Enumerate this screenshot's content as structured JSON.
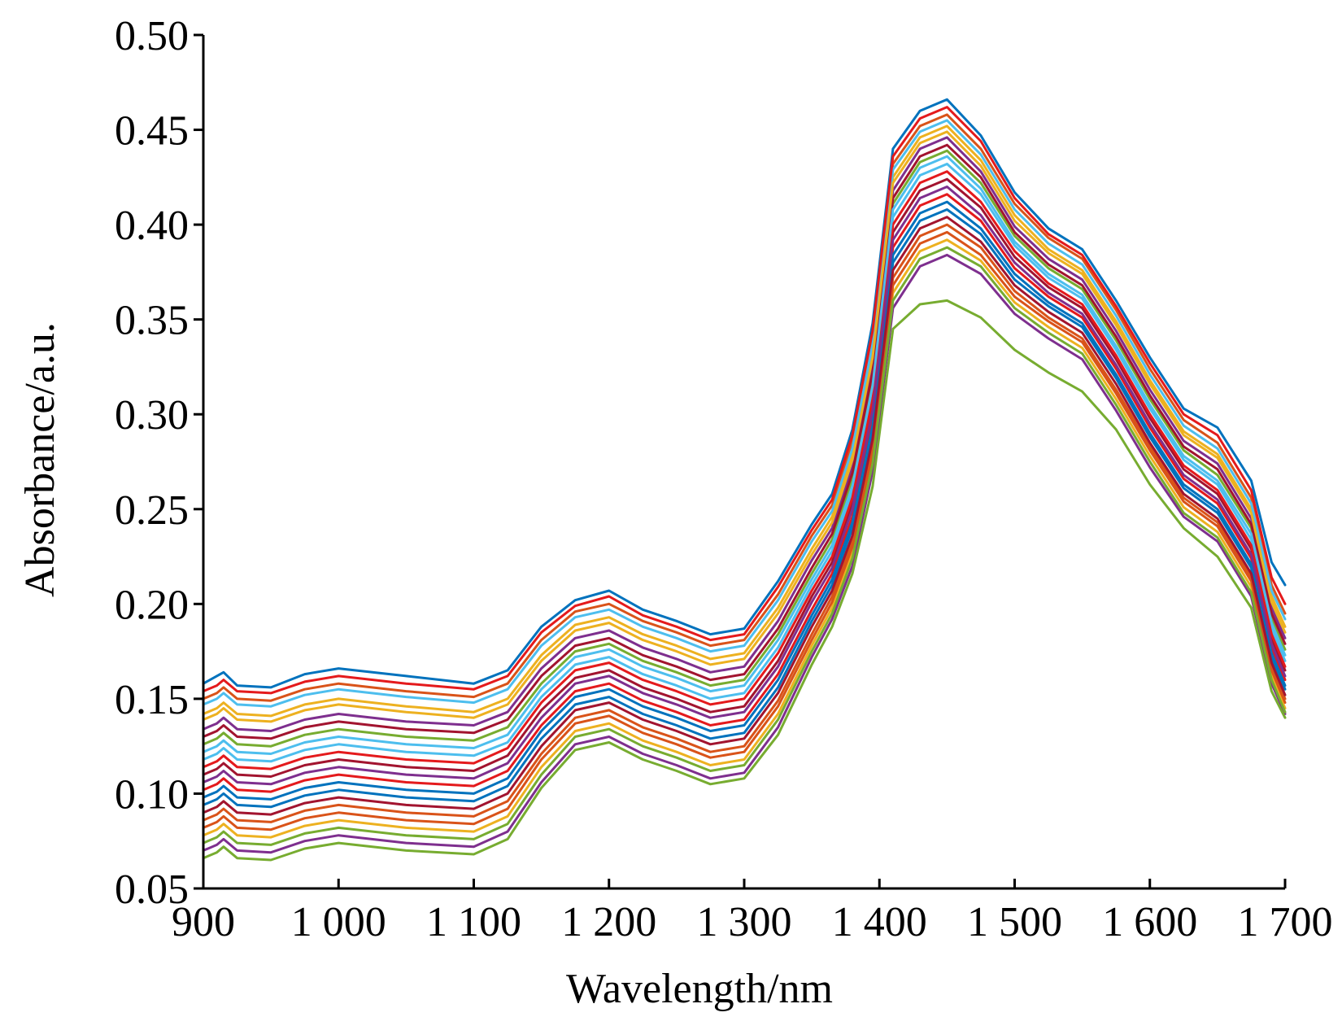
{
  "chart_data": {
    "type": "line",
    "xlabel": "Wavelength/nm",
    "ylabel": "Absorbance/a.u.",
    "xlim": [
      900,
      1700
    ],
    "ylim": [
      0.05,
      0.5
    ],
    "x_ticks": [
      900,
      1000,
      1100,
      1200,
      1300,
      1400,
      1500,
      1600,
      1700
    ],
    "x_tick_labels": [
      "900",
      "1 000",
      "1 100",
      "1 200",
      "1 300",
      "1 400",
      "1 500",
      "1 600",
      "1 700"
    ],
    "y_ticks": [
      0.05,
      0.1,
      0.15,
      0.2,
      0.25,
      0.3,
      0.35,
      0.4,
      0.45,
      0.5
    ],
    "y_tick_labels": [
      "0.05",
      "0.10",
      "0.15",
      "0.20",
      "0.25",
      "0.30",
      "0.35",
      "0.40",
      "0.45",
      "0.50"
    ],
    "grid": false,
    "legend": "none",
    "colors": [
      "#0072BD",
      "#D95319",
      "#EDB120",
      "#7E2F8E",
      "#77AC30",
      "#4DBEEE",
      "#A2142F",
      "#E41A1C"
    ],
    "x": [
      900,
      910,
      915,
      925,
      950,
      975,
      1000,
      1050,
      1100,
      1125,
      1150,
      1175,
      1200,
      1225,
      1250,
      1275,
      1300,
      1325,
      1350,
      1365,
      1380,
      1395,
      1410,
      1430,
      1450,
      1475,
      1500,
      1525,
      1550,
      1575,
      1600,
      1625,
      1650,
      1675,
      1690,
      1700
    ],
    "series": [
      {
        "values": [
          0.158,
          0.162,
          0.164,
          0.157,
          0.156,
          0.163,
          0.166,
          0.162,
          0.158,
          0.165,
          0.188,
          0.202,
          0.207,
          0.197,
          0.191,
          0.184,
          0.187,
          0.212,
          0.242,
          0.258,
          0.292,
          0.348,
          0.44,
          0.46,
          0.466,
          0.447,
          0.417,
          0.398,
          0.387,
          0.36,
          0.33,
          0.303,
          0.293,
          0.265,
          0.222,
          0.21
        ]
      },
      {
        "values": [
          0.15,
          0.153,
          0.156,
          0.15,
          0.149,
          0.155,
          0.158,
          0.154,
          0.151,
          0.158,
          0.181,
          0.196,
          0.2,
          0.191,
          0.185,
          0.178,
          0.181,
          0.205,
          0.236,
          0.252,
          0.285,
          0.34,
          0.432,
          0.452,
          0.458,
          0.44,
          0.411,
          0.393,
          0.382,
          0.355,
          0.324,
          0.297,
          0.285,
          0.256,
          0.21,
          0.195
        ]
      },
      {
        "values": [
          0.142,
          0.145,
          0.148,
          0.142,
          0.141,
          0.147,
          0.15,
          0.146,
          0.143,
          0.15,
          0.173,
          0.189,
          0.193,
          0.184,
          0.178,
          0.171,
          0.174,
          0.198,
          0.229,
          0.246,
          0.279,
          0.333,
          0.425,
          0.446,
          0.452,
          0.434,
          0.405,
          0.387,
          0.376,
          0.349,
          0.318,
          0.291,
          0.279,
          0.25,
          0.204,
          0.188
        ]
      },
      {
        "values": [
          0.134,
          0.137,
          0.14,
          0.134,
          0.133,
          0.139,
          0.142,
          0.138,
          0.136,
          0.143,
          0.166,
          0.182,
          0.186,
          0.177,
          0.171,
          0.164,
          0.167,
          0.191,
          0.223,
          0.24,
          0.272,
          0.326,
          0.418,
          0.44,
          0.446,
          0.428,
          0.399,
          0.382,
          0.371,
          0.344,
          0.313,
          0.286,
          0.274,
          0.245,
          0.198,
          0.182
        ]
      },
      {
        "values": [
          0.126,
          0.129,
          0.132,
          0.126,
          0.125,
          0.131,
          0.134,
          0.13,
          0.128,
          0.135,
          0.158,
          0.175,
          0.179,
          0.17,
          0.164,
          0.157,
          0.16,
          0.184,
          0.216,
          0.234,
          0.266,
          0.319,
          0.411,
          0.433,
          0.439,
          0.422,
          0.394,
          0.377,
          0.366,
          0.339,
          0.308,
          0.281,
          0.268,
          0.24,
          0.192,
          0.176
        ]
      },
      {
        "values": [
          0.118,
          0.121,
          0.124,
          0.118,
          0.117,
          0.123,
          0.126,
          0.122,
          0.12,
          0.127,
          0.151,
          0.168,
          0.172,
          0.163,
          0.157,
          0.15,
          0.153,
          0.177,
          0.21,
          0.228,
          0.259,
          0.312,
          0.404,
          0.426,
          0.432,
          0.416,
          0.389,
          0.372,
          0.361,
          0.334,
          0.303,
          0.276,
          0.263,
          0.234,
          0.187,
          0.17
        ]
      },
      {
        "values": [
          0.11,
          0.113,
          0.116,
          0.11,
          0.109,
          0.115,
          0.118,
          0.114,
          0.112,
          0.12,
          0.144,
          0.161,
          0.165,
          0.156,
          0.15,
          0.143,
          0.146,
          0.17,
          0.204,
          0.222,
          0.253,
          0.305,
          0.396,
          0.418,
          0.424,
          0.409,
          0.383,
          0.367,
          0.356,
          0.329,
          0.298,
          0.271,
          0.258,
          0.229,
          0.182,
          0.165
        ]
      },
      {
        "values": [
          0.102,
          0.105,
          0.108,
          0.102,
          0.101,
          0.107,
          0.11,
          0.106,
          0.104,
          0.112,
          0.136,
          0.154,
          0.158,
          0.149,
          0.143,
          0.136,
          0.139,
          0.163,
          0.197,
          0.216,
          0.246,
          0.298,
          0.388,
          0.41,
          0.416,
          0.402,
          0.377,
          0.362,
          0.351,
          0.324,
          0.293,
          0.266,
          0.253,
          0.224,
          0.177,
          0.16
        ]
      },
      {
        "values": [
          0.094,
          0.097,
          0.1,
          0.094,
          0.093,
          0.099,
          0.102,
          0.098,
          0.096,
          0.104,
          0.129,
          0.147,
          0.151,
          0.142,
          0.136,
          0.129,
          0.132,
          0.156,
          0.191,
          0.21,
          0.24,
          0.291,
          0.38,
          0.402,
          0.408,
          0.395,
          0.371,
          0.357,
          0.346,
          0.319,
          0.288,
          0.261,
          0.248,
          0.219,
          0.172,
          0.155
        ]
      },
      {
        "values": [
          0.086,
          0.089,
          0.092,
          0.086,
          0.085,
          0.091,
          0.094,
          0.09,
          0.088,
          0.096,
          0.121,
          0.14,
          0.144,
          0.135,
          0.129,
          0.122,
          0.125,
          0.149,
          0.184,
          0.204,
          0.233,
          0.284,
          0.372,
          0.394,
          0.4,
          0.388,
          0.365,
          0.351,
          0.34,
          0.313,
          0.283,
          0.256,
          0.243,
          0.214,
          0.167,
          0.15
        ]
      },
      {
        "values": [
          0.078,
          0.081,
          0.084,
          0.078,
          0.077,
          0.083,
          0.086,
          0.082,
          0.08,
          0.088,
          0.114,
          0.133,
          0.137,
          0.128,
          0.122,
          0.115,
          0.118,
          0.142,
          0.178,
          0.198,
          0.227,
          0.277,
          0.364,
          0.386,
          0.392,
          0.381,
          0.359,
          0.346,
          0.335,
          0.308,
          0.278,
          0.251,
          0.238,
          0.209,
          0.162,
          0.145
        ]
      },
      {
        "values": [
          0.07,
          0.073,
          0.076,
          0.07,
          0.069,
          0.075,
          0.078,
          0.074,
          0.072,
          0.08,
          0.106,
          0.126,
          0.13,
          0.121,
          0.115,
          0.108,
          0.111,
          0.135,
          0.172,
          0.192,
          0.22,
          0.27,
          0.356,
          0.378,
          0.384,
          0.374,
          0.353,
          0.34,
          0.329,
          0.302,
          0.272,
          0.246,
          0.233,
          0.204,
          0.158,
          0.142
        ]
      },
      {
        "values": [
          0.066,
          0.069,
          0.072,
          0.066,
          0.065,
          0.071,
          0.074,
          0.07,
          0.068,
          0.076,
          0.103,
          0.123,
          0.127,
          0.118,
          0.112,
          0.105,
          0.108,
          0.131,
          0.168,
          0.188,
          0.216,
          0.262,
          0.345,
          0.358,
          0.36,
          0.351,
          0.334,
          0.322,
          0.312,
          0.292,
          0.263,
          0.24,
          0.225,
          0.198,
          0.154,
          0.14
        ]
      },
      {
        "values": [
          0.147,
          0.15,
          0.153,
          0.147,
          0.146,
          0.152,
          0.155,
          0.151,
          0.148,
          0.155,
          0.178,
          0.193,
          0.197,
          0.188,
          0.182,
          0.175,
          0.178,
          0.202,
          0.233,
          0.249,
          0.282,
          0.337,
          0.429,
          0.449,
          0.455,
          0.437,
          0.408,
          0.39,
          0.379,
          0.352,
          0.321,
          0.294,
          0.282,
          0.253,
          0.207,
          0.192
        ]
      },
      {
        "values": [
          0.13,
          0.133,
          0.136,
          0.13,
          0.129,
          0.135,
          0.138,
          0.134,
          0.132,
          0.139,
          0.162,
          0.178,
          0.182,
          0.173,
          0.167,
          0.16,
          0.163,
          0.187,
          0.219,
          0.237,
          0.269,
          0.322,
          0.414,
          0.436,
          0.442,
          0.425,
          0.396,
          0.379,
          0.368,
          0.341,
          0.31,
          0.283,
          0.271,
          0.242,
          0.195,
          0.179
        ]
      },
      {
        "values": [
          0.114,
          0.117,
          0.12,
          0.114,
          0.113,
          0.119,
          0.122,
          0.118,
          0.116,
          0.124,
          0.148,
          0.165,
          0.169,
          0.16,
          0.154,
          0.147,
          0.15,
          0.174,
          0.207,
          0.225,
          0.256,
          0.308,
          0.4,
          0.422,
          0.428,
          0.412,
          0.386,
          0.369,
          0.358,
          0.331,
          0.3,
          0.273,
          0.26,
          0.231,
          0.184,
          0.167
        ]
      },
      {
        "values": [
          0.098,
          0.101,
          0.104,
          0.098,
          0.097,
          0.103,
          0.106,
          0.102,
          0.1,
          0.108,
          0.133,
          0.151,
          0.155,
          0.146,
          0.14,
          0.133,
          0.136,
          0.16,
          0.194,
          0.213,
          0.243,
          0.294,
          0.384,
          0.406,
          0.412,
          0.398,
          0.374,
          0.359,
          0.348,
          0.321,
          0.29,
          0.263,
          0.25,
          0.221,
          0.174,
          0.157
        ]
      },
      {
        "values": [
          0.082,
          0.085,
          0.088,
          0.082,
          0.081,
          0.087,
          0.09,
          0.086,
          0.084,
          0.092,
          0.118,
          0.137,
          0.141,
          0.132,
          0.126,
          0.119,
          0.122,
          0.146,
          0.181,
          0.201,
          0.23,
          0.28,
          0.368,
          0.39,
          0.396,
          0.384,
          0.362,
          0.349,
          0.338,
          0.311,
          0.281,
          0.254,
          0.241,
          0.212,
          0.165,
          0.148
        ]
      },
      {
        "values": [
          0.139,
          0.142,
          0.145,
          0.139,
          0.138,
          0.144,
          0.147,
          0.143,
          0.14,
          0.147,
          0.17,
          0.186,
          0.19,
          0.181,
          0.175,
          0.168,
          0.171,
          0.195,
          0.226,
          0.243,
          0.276,
          0.33,
          0.422,
          0.443,
          0.449,
          0.431,
          0.402,
          0.385,
          0.374,
          0.347,
          0.316,
          0.289,
          0.277,
          0.248,
          0.201,
          0.185
        ]
      },
      {
        "values": [
          0.106,
          0.109,
          0.112,
          0.106,
          0.105,
          0.111,
          0.114,
          0.11,
          0.108,
          0.116,
          0.14,
          0.158,
          0.162,
          0.153,
          0.147,
          0.14,
          0.143,
          0.167,
          0.201,
          0.219,
          0.25,
          0.302,
          0.392,
          0.414,
          0.42,
          0.405,
          0.38,
          0.364,
          0.353,
          0.326,
          0.295,
          0.268,
          0.255,
          0.226,
          0.179,
          0.162
        ]
      },
      {
        "values": [
          0.074,
          0.077,
          0.08,
          0.074,
          0.073,
          0.079,
          0.082,
          0.078,
          0.076,
          0.084,
          0.11,
          0.13,
          0.134,
          0.125,
          0.119,
          0.112,
          0.115,
          0.139,
          0.175,
          0.195,
          0.224,
          0.274,
          0.36,
          0.382,
          0.388,
          0.378,
          0.356,
          0.343,
          0.332,
          0.305,
          0.275,
          0.248,
          0.235,
          0.206,
          0.16,
          0.143
        ]
      },
      {
        "values": [
          0.122,
          0.125,
          0.128,
          0.122,
          0.121,
          0.127,
          0.13,
          0.126,
          0.124,
          0.131,
          0.155,
          0.172,
          0.176,
          0.167,
          0.161,
          0.154,
          0.157,
          0.181,
          0.213,
          0.231,
          0.262,
          0.315,
          0.408,
          0.43,
          0.436,
          0.419,
          0.391,
          0.374,
          0.363,
          0.336,
          0.305,
          0.278,
          0.265,
          0.237,
          0.19,
          0.173
        ]
      },
      {
        "values": [
          0.09,
          0.093,
          0.096,
          0.09,
          0.089,
          0.095,
          0.098,
          0.094,
          0.092,
          0.1,
          0.125,
          0.144,
          0.148,
          0.139,
          0.133,
          0.126,
          0.129,
          0.153,
          0.188,
          0.207,
          0.236,
          0.287,
          0.376,
          0.398,
          0.404,
          0.391,
          0.368,
          0.354,
          0.343,
          0.316,
          0.285,
          0.258,
          0.245,
          0.216,
          0.169,
          0.152
        ]
      },
      {
        "values": [
          0.154,
          0.157,
          0.16,
          0.154,
          0.153,
          0.159,
          0.162,
          0.158,
          0.155,
          0.162,
          0.185,
          0.199,
          0.204,
          0.194,
          0.188,
          0.181,
          0.184,
          0.209,
          0.239,
          0.255,
          0.289,
          0.344,
          0.436,
          0.456,
          0.462,
          0.444,
          0.414,
          0.395,
          0.384,
          0.357,
          0.327,
          0.3,
          0.289,
          0.26,
          0.214,
          0.2
        ]
      }
    ]
  }
}
